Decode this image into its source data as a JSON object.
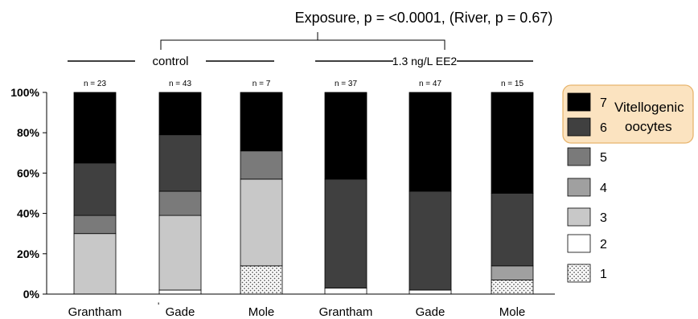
{
  "chart_data": {
    "type": "bar",
    "stacked": true,
    "title": "Exposure, p = <0.0001, (River,  p = 0.67)",
    "group_labels": [
      "control",
      "1.3 ng/L EE2"
    ],
    "categories": [
      "Grantham",
      "Gade",
      "Mole",
      "Grantham",
      "Gade",
      "Mole"
    ],
    "n_labels": [
      "n = 23",
      "n = 43",
      "n = 7",
      "n = 37",
      "n = 47",
      "n = 15"
    ],
    "ylim": [
      0,
      100
    ],
    "ytick_labels": [
      "0%",
      "20%",
      "40%",
      "60%",
      "80%",
      "100%"
    ],
    "stray_mark": "'",
    "series": [
      {
        "name": "1",
        "color": "#ffffff",
        "pattern": "dots",
        "values": [
          0,
          0,
          14,
          0,
          0,
          7
        ]
      },
      {
        "name": "2",
        "color": "#ffffff",
        "values": [
          0,
          2,
          0,
          3,
          2,
          0
        ]
      },
      {
        "name": "3",
        "color": "#c8c8c8",
        "values": [
          30,
          37,
          43,
          0,
          0,
          0
        ]
      },
      {
        "name": "4",
        "color": "#a0a0a0",
        "values": [
          0,
          0,
          0,
          0,
          0,
          7
        ]
      },
      {
        "name": "5",
        "color": "#7a7a7a",
        "values": [
          9,
          12,
          14,
          0,
          0,
          0
        ]
      },
      {
        "name": "6",
        "color": "#404040",
        "values": [
          26,
          28,
          0,
          54,
          49,
          36
        ]
      },
      {
        "name": "7",
        "color": "#000000",
        "values": [
          35,
          21,
          29,
          43,
          49,
          50
        ]
      }
    ],
    "legend": {
      "position": "right",
      "order": [
        "7",
        "6",
        "5",
        "4",
        "3",
        "2",
        "1"
      ],
      "highlight_label": "Vitellogenic oocytes",
      "highlight_lines": [
        "Vitellogenic",
        "oocytes"
      ],
      "highlight_color": "#fbe3c0",
      "highlight_border": "#e8b56e"
    }
  }
}
